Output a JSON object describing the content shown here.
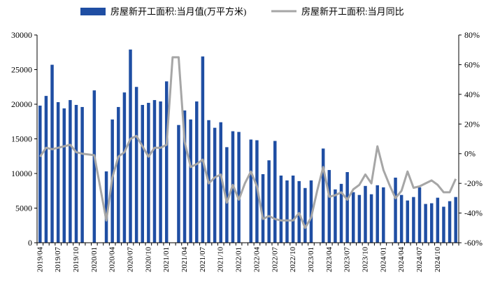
{
  "colors": {
    "bar": "#1f4ea3",
    "line": "#a6a6a6",
    "axis": "#000000"
  },
  "chart_data": {
    "type": "bar",
    "legend": {
      "placement": "top-center"
    },
    "grid": false,
    "series": [
      {
        "name": "房屋新开工面积:当月值(万平方米)",
        "kind": "bar",
        "axis": "left",
        "values": [
          19800,
          21200,
          25700,
          20300,
          19400,
          20600,
          19900,
          19600,
          null,
          22000,
          null,
          10300,
          17800,
          19600,
          21700,
          27900,
          22500,
          19900,
          20200,
          20600,
          20400,
          23300,
          null,
          17000,
          19100,
          17800,
          20400,
          26900,
          17700,
          16600,
          17400,
          13800,
          16100,
          16000,
          null,
          14900,
          14800,
          9900,
          11900,
          14700,
          9700,
          9000,
          9700,
          8900,
          7900,
          9000,
          null,
          13600,
          10500,
          7700,
          8500,
          10200,
          7300,
          6900,
          8200,
          7000,
          8300,
          8000,
          null,
          9400,
          6900,
          6100,
          6600,
          8000,
          5600,
          5700,
          6500,
          5200,
          6000,
          6600
        ]
      },
      {
        "name": "房屋新开工面积:当月同比",
        "kind": "line",
        "axis": "right",
        "values": [
          -2,
          4,
          3,
          4,
          5,
          6,
          1,
          0,
          null,
          -1,
          null,
          -45,
          -16,
          -2,
          1,
          10,
          12,
          5,
          -2,
          4,
          4,
          6,
          65,
          65,
          8,
          -9,
          -7,
          -4,
          -20,
          -16,
          -14,
          -33,
          -21,
          -31,
          -20,
          -12,
          -22,
          -44,
          -42,
          -44,
          -45,
          -45,
          -45,
          -40,
          -50,
          -43,
          -25,
          -9,
          -29,
          -28,
          -26,
          -31,
          -24,
          -21,
          -14,
          -20,
          5,
          -11,
          -21,
          -30,
          -25,
          -12,
          -23,
          -22,
          -20,
          -18,
          -21,
          -26,
          -26,
          -17
        ]
      }
    ],
    "x_ticks": [
      "2019/04",
      "2019/07",
      "2019/10",
      "2020/01",
      "2020/04",
      "2020/07",
      "2020/10",
      "2021/01",
      "2021/04",
      "2021/07",
      "2021/10",
      "2022/01",
      "2022/04",
      "2022/07",
      "2022/10",
      "2023/01",
      "2023/04",
      "2023/07",
      "2023/10",
      "2024/01",
      "2024/04",
      "2024/07",
      "2024/10"
    ],
    "y_left": {
      "min": 0,
      "max": 30000,
      "ticks": [
        "0",
        "5000",
        "10000",
        "15000",
        "20000",
        "25000",
        "30000"
      ]
    },
    "y_right": {
      "min": -60,
      "max": 80,
      "ticks": [
        "-60%",
        "-40%",
        "-20%",
        "0%",
        "20%",
        "40%",
        "60%",
        "80%"
      ]
    }
  }
}
